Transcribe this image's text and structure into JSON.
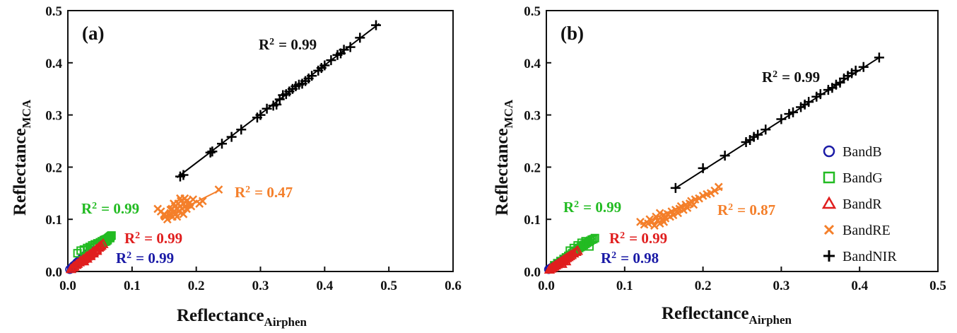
{
  "figure": {
    "legend": [
      {
        "label": "BandB",
        "marker": "circle",
        "color": "#1a1aa6"
      },
      {
        "label": "BandG",
        "marker": "square",
        "color": "#22bb22"
      },
      {
        "label": "BandR",
        "marker": "triangle",
        "color": "#e01e1e"
      },
      {
        "label": "BandRE",
        "marker": "x",
        "color": "#f47f2a"
      },
      {
        "label": "BandNIR",
        "marker": "plus",
        "color": "#000000"
      }
    ],
    "r2_prefix": "R",
    "r2_exp": "2",
    "x_label_main": "Reflectance",
    "x_label_sub": "Airphen",
    "y_label_main": "Reflectance",
    "y_label_sub": "MCA"
  },
  "chart_data": [
    {
      "type": "scatter",
      "panel": "(a)",
      "xlim": [
        0,
        0.6
      ],
      "ylim": [
        0,
        0.5
      ],
      "xticks": [
        "0.0",
        "0.1",
        "0.2",
        "0.3",
        "0.4",
        "0.5",
        "0.6"
      ],
      "yticks": [
        "0.0",
        "0.1",
        "0.2",
        "0.3",
        "0.4",
        "0.5"
      ],
      "series": [
        {
          "name": "BandB",
          "r2": "= 0.99",
          "fit": [
            [
              0.0,
              0.0
            ],
            [
              0.04,
              0.045
            ]
          ],
          "x": [
            0.003,
            0.006,
            0.008,
            0.01,
            0.012,
            0.014,
            0.016,
            0.018,
            0.02,
            0.022,
            0.025,
            0.028,
            0.03,
            0.033,
            0.036
          ],
          "y": [
            0.004,
            0.007,
            0.01,
            0.012,
            0.014,
            0.017,
            0.019,
            0.021,
            0.023,
            0.026,
            0.029,
            0.032,
            0.034,
            0.037,
            0.04
          ]
        },
        {
          "name": "BandG",
          "r2": "= 0.99",
          "fit": [
            [
              0.01,
              0.015
            ],
            [
              0.068,
              0.068
            ]
          ],
          "x": [
            0.015,
            0.02,
            0.025,
            0.03,
            0.034,
            0.038,
            0.042,
            0.046,
            0.05,
            0.053,
            0.056,
            0.058,
            0.06,
            0.062,
            0.063,
            0.064,
            0.065,
            0.066,
            0.067,
            0.068,
            0.05,
            0.045,
            0.055,
            0.06,
            0.04,
            0.035,
            0.03,
            0.062,
            0.066,
            0.058
          ],
          "y": [
            0.035,
            0.04,
            0.042,
            0.045,
            0.047,
            0.05,
            0.052,
            0.054,
            0.056,
            0.058,
            0.06,
            0.061,
            0.062,
            0.063,
            0.064,
            0.065,
            0.066,
            0.067,
            0.068,
            0.069,
            0.05,
            0.048,
            0.055,
            0.058,
            0.046,
            0.044,
            0.041,
            0.06,
            0.064,
            0.057
          ]
        },
        {
          "name": "BandR",
          "r2": "= 0.99",
          "fit": [
            [
              0.0,
              0.0
            ],
            [
              0.06,
              0.058
            ]
          ],
          "x": [
            0.005,
            0.008,
            0.01,
            0.013,
            0.015,
            0.018,
            0.02,
            0.023,
            0.025,
            0.028,
            0.03,
            0.033,
            0.035,
            0.038,
            0.04,
            0.043,
            0.045,
            0.048,
            0.05,
            0.052,
            0.055,
            0.03,
            0.035,
            0.04,
            0.045,
            0.025
          ],
          "y": [
            0.005,
            0.008,
            0.01,
            0.013,
            0.015,
            0.018,
            0.02,
            0.022,
            0.024,
            0.027,
            0.029,
            0.031,
            0.033,
            0.036,
            0.038,
            0.041,
            0.043,
            0.046,
            0.048,
            0.05,
            0.053,
            0.025,
            0.03,
            0.035,
            0.04,
            0.02
          ]
        },
        {
          "name": "BandRE",
          "r2": "= 0.47",
          "fit": [
            [
              0.145,
              0.1
            ],
            [
              0.235,
              0.155
            ]
          ],
          "x": [
            0.14,
            0.145,
            0.15,
            0.152,
            0.155,
            0.158,
            0.16,
            0.162,
            0.163,
            0.165,
            0.167,
            0.168,
            0.17,
            0.172,
            0.173,
            0.175,
            0.176,
            0.178,
            0.18,
            0.182,
            0.183,
            0.185,
            0.187,
            0.19,
            0.192,
            0.195,
            0.205,
            0.21,
            0.235,
            0.16,
            0.17,
            0.175,
            0.165,
            0.18,
            0.185,
            0.15
          ],
          "y": [
            0.12,
            0.115,
            0.11,
            0.105,
            0.1,
            0.108,
            0.112,
            0.12,
            0.105,
            0.115,
            0.125,
            0.11,
            0.12,
            0.13,
            0.115,
            0.125,
            0.135,
            0.12,
            0.13,
            0.14,
            0.125,
            0.135,
            0.128,
            0.132,
            0.125,
            0.138,
            0.13,
            0.135,
            0.157,
            0.118,
            0.105,
            0.14,
            0.13,
            0.11,
            0.12,
            0.108
          ]
        },
        {
          "name": "BandNIR",
          "r2": "= 0.99",
          "fit": [
            [
              0.17,
              0.18
            ],
            [
              0.485,
              0.475
            ]
          ],
          "x": [
            0.175,
            0.18,
            0.222,
            0.225,
            0.24,
            0.255,
            0.27,
            0.295,
            0.3,
            0.31,
            0.32,
            0.325,
            0.33,
            0.335,
            0.34,
            0.35,
            0.355,
            0.36,
            0.365,
            0.37,
            0.38,
            0.39,
            0.395,
            0.4,
            0.41,
            0.42,
            0.425,
            0.43,
            0.44,
            0.455,
            0.48,
            0.345,
            0.375
          ],
          "y": [
            0.182,
            0.185,
            0.228,
            0.23,
            0.245,
            0.258,
            0.272,
            0.295,
            0.3,
            0.312,
            0.318,
            0.32,
            0.33,
            0.338,
            0.34,
            0.35,
            0.355,
            0.358,
            0.36,
            0.365,
            0.375,
            0.385,
            0.39,
            0.395,
            0.405,
            0.415,
            0.418,
            0.425,
            0.43,
            0.448,
            0.472,
            0.345,
            0.37
          ]
        }
      ]
    },
    {
      "type": "scatter",
      "panel": "(b)",
      "xlim": [
        0,
        0.5
      ],
      "ylim": [
        0,
        0.5
      ],
      "xticks": [
        "0.0",
        "0.1",
        "0.2",
        "0.3",
        "0.4",
        "0.5"
      ],
      "yticks": [
        "0.0",
        "0.1",
        "0.2",
        "0.3",
        "0.4",
        "0.5"
      ],
      "series": [
        {
          "name": "BandB",
          "r2": "= 0.98",
          "fit": [
            [
              0.0,
              0.0
            ],
            [
              0.028,
              0.03
            ]
          ],
          "x": [
            0.003,
            0.005,
            0.007,
            0.009,
            0.011,
            0.013,
            0.015,
            0.017,
            0.019,
            0.021,
            0.023,
            0.025
          ],
          "y": [
            0.004,
            0.006,
            0.008,
            0.01,
            0.012,
            0.014,
            0.016,
            0.018,
            0.02,
            0.022,
            0.024,
            0.027
          ]
        },
        {
          "name": "BandG",
          "r2": "= 0.99",
          "fit": [
            [
              0.01,
              0.01
            ],
            [
              0.062,
              0.063
            ]
          ],
          "x": [
            0.01,
            0.014,
            0.018,
            0.022,
            0.025,
            0.028,
            0.03,
            0.033,
            0.035,
            0.038,
            0.04,
            0.042,
            0.044,
            0.046,
            0.048,
            0.05,
            0.052,
            0.054,
            0.056,
            0.058,
            0.06,
            0.062,
            0.035,
            0.04,
            0.045,
            0.05,
            0.055,
            0.03
          ],
          "y": [
            0.012,
            0.016,
            0.02,
            0.024,
            0.027,
            0.03,
            0.032,
            0.035,
            0.038,
            0.04,
            0.042,
            0.045,
            0.047,
            0.049,
            0.051,
            0.053,
            0.055,
            0.057,
            0.059,
            0.061,
            0.062,
            0.064,
            0.045,
            0.05,
            0.055,
            0.058,
            0.048,
            0.04
          ]
        },
        {
          "name": "BandR",
          "r2": "= 0.99",
          "fit": [
            [
              0.0,
              0.0
            ],
            [
              0.045,
              0.045
            ]
          ],
          "x": [
            0.004,
            0.006,
            0.008,
            0.01,
            0.012,
            0.014,
            0.016,
            0.018,
            0.02,
            0.022,
            0.024,
            0.026,
            0.028,
            0.03,
            0.032,
            0.035,
            0.038,
            0.04,
            0.02,
            0.025
          ],
          "y": [
            0.004,
            0.006,
            0.008,
            0.01,
            0.012,
            0.014,
            0.016,
            0.018,
            0.02,
            0.022,
            0.024,
            0.026,
            0.028,
            0.03,
            0.032,
            0.035,
            0.038,
            0.04,
            0.015,
            0.02
          ]
        },
        {
          "name": "BandRE",
          "r2": "= 0.87",
          "fit": [
            [
              0.12,
              0.09
            ],
            [
              0.225,
              0.16
            ]
          ],
          "x": [
            0.12,
            0.125,
            0.13,
            0.132,
            0.135,
            0.138,
            0.14,
            0.142,
            0.145,
            0.148,
            0.15,
            0.152,
            0.155,
            0.158,
            0.16,
            0.162,
            0.165,
            0.168,
            0.17,
            0.172,
            0.175,
            0.178,
            0.18,
            0.183,
            0.185,
            0.188,
            0.19,
            0.195,
            0.2,
            0.205,
            0.21,
            0.215,
            0.22,
            0.145,
            0.15
          ],
          "y": [
            0.095,
            0.09,
            0.092,
            0.1,
            0.095,
            0.088,
            0.105,
            0.098,
            0.092,
            0.1,
            0.108,
            0.102,
            0.11,
            0.105,
            0.115,
            0.108,
            0.118,
            0.112,
            0.12,
            0.125,
            0.118,
            0.128,
            0.122,
            0.13,
            0.135,
            0.128,
            0.138,
            0.14,
            0.145,
            0.148,
            0.15,
            0.155,
            0.162,
            0.112,
            0.095
          ]
        },
        {
          "name": "BandNIR",
          "r2": "= 0.99",
          "fit": [
            [
              0.165,
              0.16
            ],
            [
              0.425,
              0.41
            ]
          ],
          "x": [
            0.165,
            0.2,
            0.228,
            0.255,
            0.26,
            0.265,
            0.27,
            0.28,
            0.3,
            0.31,
            0.315,
            0.325,
            0.33,
            0.335,
            0.345,
            0.35,
            0.36,
            0.365,
            0.37,
            0.375,
            0.38,
            0.385,
            0.39,
            0.395,
            0.405,
            0.425
          ],
          "y": [
            0.16,
            0.198,
            0.222,
            0.248,
            0.252,
            0.258,
            0.262,
            0.272,
            0.292,
            0.302,
            0.305,
            0.315,
            0.32,
            0.325,
            0.335,
            0.34,
            0.348,
            0.352,
            0.358,
            0.362,
            0.37,
            0.375,
            0.38,
            0.385,
            0.392,
            0.41
          ]
        }
      ]
    }
  ]
}
